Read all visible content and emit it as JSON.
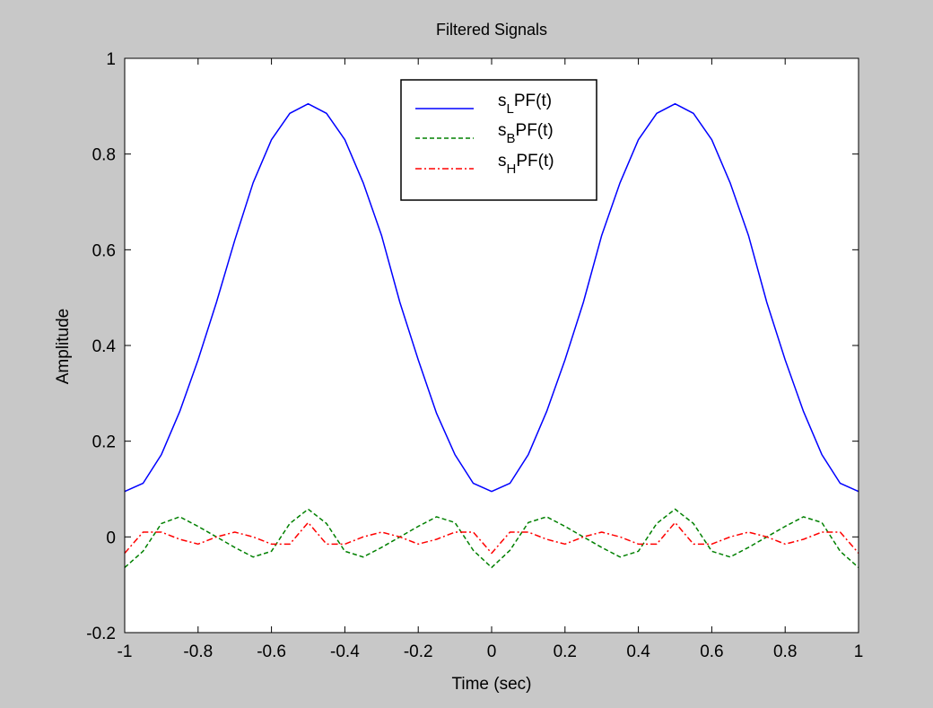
{
  "colors": {
    "figure_bg": "#c8c8c8",
    "axes_bg": "#ffffff",
    "lowpass": "#0000ff",
    "bandpass": "#008000",
    "highpass": "#ff0000"
  },
  "chart_data": {
    "type": "line",
    "title": "Filtered Signals",
    "xlabel": "Time (sec)",
    "ylabel": "Amplitude",
    "xlim": [
      -1,
      1
    ],
    "ylim": [
      -0.2,
      1
    ],
    "xticks": [
      -1,
      -0.8,
      -0.6,
      -0.4,
      -0.2,
      0,
      0.2,
      0.4,
      0.6,
      0.8,
      1
    ],
    "xtick_labels": [
      "-1",
      "-0.8",
      "-0.6",
      "-0.4",
      "-0.2",
      "0",
      "0.2",
      "0.4",
      "0.6",
      "0.8",
      "1"
    ],
    "yticks": [
      -0.2,
      0,
      0.2,
      0.4,
      0.6,
      0.8,
      1
    ],
    "ytick_labels": [
      "-0.2",
      "0",
      "0.2",
      "0.4",
      "0.6",
      "0.8",
      "1"
    ],
    "grid": false,
    "legend_position": "top-center",
    "x": [
      -1,
      -0.95,
      -0.9,
      -0.85,
      -0.8,
      -0.75,
      -0.7,
      -0.65,
      -0.6,
      -0.55,
      -0.5,
      -0.45,
      -0.4,
      -0.35,
      -0.3,
      -0.25,
      -0.2,
      -0.15,
      -0.1,
      -0.05,
      0,
      0.05,
      0.1,
      0.15,
      0.2,
      0.25,
      0.3,
      0.35,
      0.4,
      0.45,
      0.5,
      0.55,
      0.6,
      0.65,
      0.7,
      0.75,
      0.8,
      0.85,
      0.9,
      0.95,
      1
    ],
    "series": [
      {
        "name_base": "s",
        "name_sub": "L",
        "name_rest": "PF(t)",
        "style": "solid",
        "values": [
          0.095,
          0.112,
          0.172,
          0.262,
          0.37,
          0.49,
          0.62,
          0.74,
          0.83,
          0.885,
          0.905,
          0.885,
          0.83,
          0.74,
          0.63,
          0.49,
          0.37,
          0.258,
          0.172,
          0.112,
          0.095,
          0.112,
          0.172,
          0.262,
          0.37,
          0.49,
          0.63,
          0.74,
          0.83,
          0.885,
          0.905,
          0.885,
          0.83,
          0.74,
          0.63,
          0.49,
          0.37,
          0.262,
          0.172,
          0.112,
          0.095
        ]
      },
      {
        "name_base": "s",
        "name_sub": "B",
        "name_rest": "PF(t)",
        "style": "dashed",
        "values": [
          -0.064,
          -0.03,
          0.028,
          0.042,
          0.022,
          0,
          -0.022,
          -0.042,
          -0.03,
          0.028,
          0.058,
          0.028,
          -0.03,
          -0.042,
          -0.022,
          0,
          0.022,
          0.042,
          0.03,
          -0.028,
          -0.064,
          -0.028,
          0.03,
          0.042,
          0.022,
          0,
          -0.022,
          -0.042,
          -0.03,
          0.028,
          0.058,
          0.028,
          -0.03,
          -0.042,
          -0.022,
          0,
          0.022,
          0.042,
          0.03,
          -0.03,
          -0.064
        ]
      },
      {
        "name_base": "s",
        "name_sub": "H",
        "name_rest": "PF(t)",
        "style": "dashdot",
        "values": [
          -0.034,
          0.01,
          0.01,
          -0.005,
          -0.015,
          0,
          0.01,
          0,
          -0.015,
          -0.015,
          0.03,
          -0.015,
          -0.015,
          0,
          0.01,
          0,
          -0.015,
          -0.005,
          0.01,
          0.01,
          -0.034,
          0.01,
          0.01,
          -0.005,
          -0.015,
          0,
          0.01,
          0,
          -0.015,
          -0.015,
          0.03,
          -0.015,
          -0.015,
          0,
          0.01,
          0,
          -0.015,
          -0.005,
          0.01,
          0.01,
          -0.034
        ]
      }
    ]
  }
}
